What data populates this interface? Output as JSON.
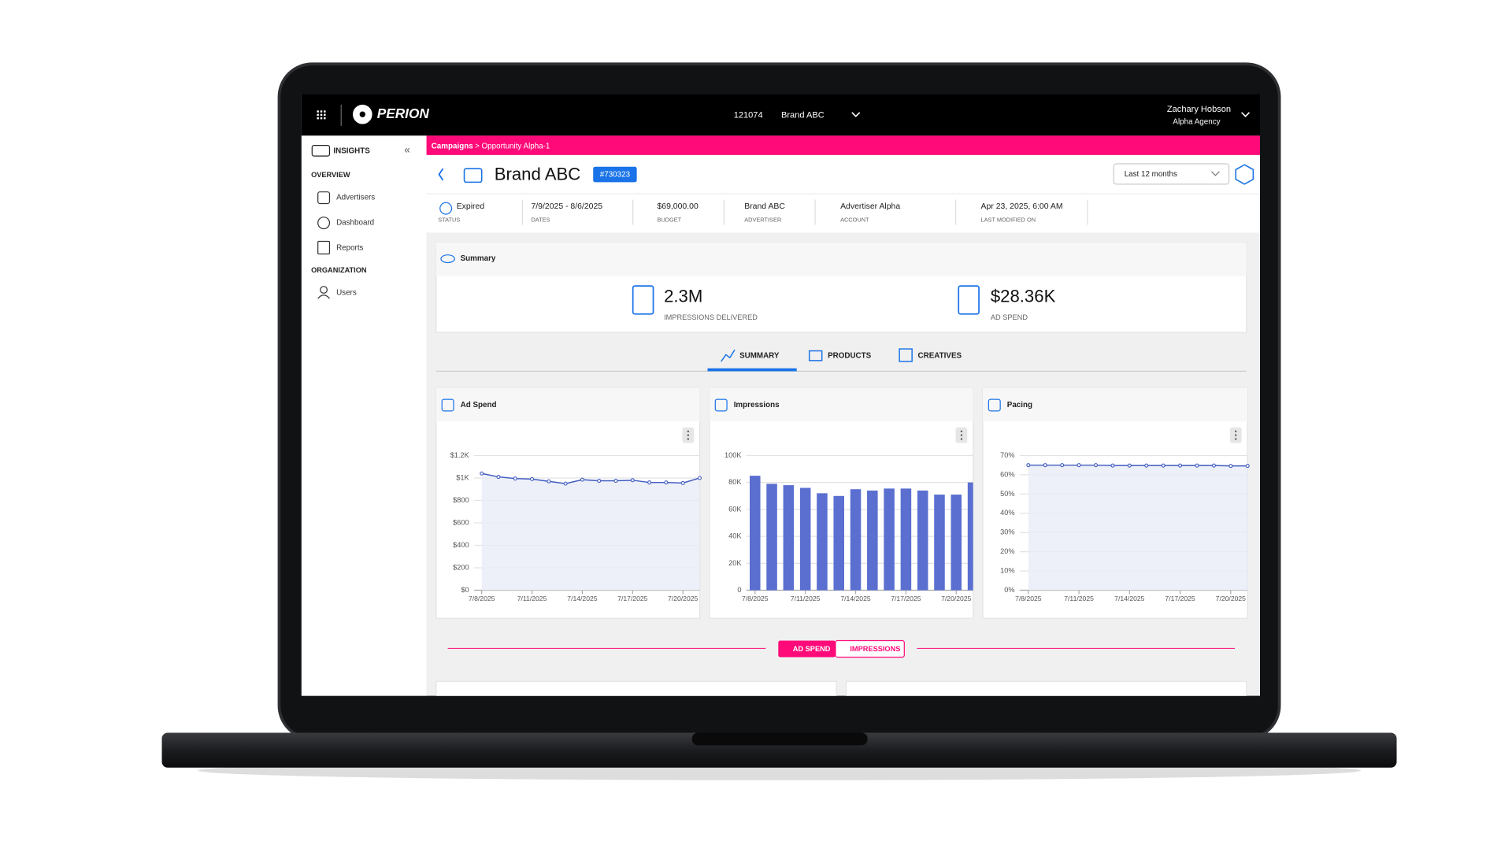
{
  "header": {
    "logo": "PERION",
    "account_id": "121074",
    "brand": "Brand ABC",
    "user_name": "Zachary Hobson",
    "user_org": "Alpha Agency"
  },
  "breadcrumb": {
    "root": "Campaigns",
    "path": "> Opportunity Alpha-1"
  },
  "sidebar": {
    "title": "INSIGHTS",
    "sections": [
      {
        "heading": "OVERVIEW",
        "items": [
          "Advertisers",
          "Dashboard",
          "Reports"
        ]
      },
      {
        "heading": "ORGANIZATION",
        "items": [
          "Users"
        ]
      }
    ]
  },
  "campaign": {
    "name": "Brand ABC",
    "id": "#730323",
    "date_range": "Last 12 months",
    "fields": [
      {
        "value": "Expired",
        "label": "STATUS"
      },
      {
        "value": "7/9/2025 - 8/6/2025",
        "label": "DATES"
      },
      {
        "value": "$69,000.00",
        "label": "BUDGET"
      },
      {
        "value": "Brand ABC",
        "label": "ADVERTISER"
      },
      {
        "value": "Advertiser Alpha",
        "label": "ACCOUNT"
      },
      {
        "value": "Apr 23, 2025, 6:00 AM",
        "label": "LAST MODIFIED ON"
      }
    ]
  },
  "summary": {
    "title": "Summary",
    "stats": [
      {
        "value": "2.3M",
        "label": "IMPRESSIONS DELIVERED"
      },
      {
        "value": "$28.36K",
        "label": "AD SPEND"
      }
    ]
  },
  "tabs": [
    "SUMMARY",
    "PRODUCTS",
    "CREATIVES"
  ],
  "charts": [
    {
      "type": "line",
      "title": "Ad Spend",
      "color": "#3f5bbf",
      "categories": [
        "7/8/2025",
        null,
        null,
        "7/11/2025",
        null,
        null,
        "7/14/2025",
        null,
        null,
        "7/17/2025",
        null,
        null,
        "7/20/2025",
        null
      ],
      "values": [
        1040,
        1010,
        995,
        990,
        970,
        950,
        985,
        975,
        975,
        980,
        960,
        960,
        955,
        1000
      ],
      "ylim": [
        0,
        1200
      ],
      "yticks": [
        {
          "value": 0,
          "label": "$0"
        },
        {
          "value": 200,
          "label": "$200"
        },
        {
          "value": 400,
          "label": "$400"
        },
        {
          "value": 600,
          "label": "$600"
        },
        {
          "value": 800,
          "label": "$800"
        },
        {
          "value": 1000,
          "label": "$1K"
        },
        {
          "value": 1200,
          "label": "$1.2K"
        }
      ],
      "grid": true
    },
    {
      "type": "bar",
      "title": "Impressions",
      "color": "#5a6fd0",
      "categories": [
        "7/8/2025",
        null,
        null,
        "7/11/2025",
        null,
        null,
        "7/14/2025",
        null,
        null,
        "7/17/2025",
        null,
        null,
        "7/20/2025",
        null
      ],
      "values": [
        85000,
        79000,
        78000,
        76000,
        72000,
        70000,
        75000,
        74000,
        75500,
        75500,
        74000,
        71000,
        71000,
        80000
      ],
      "ylim": [
        0,
        100000
      ],
      "yticks": [
        0,
        {
          "value": 20000,
          "label": "20K"
        },
        {
          "value": 40000,
          "label": "40K"
        },
        {
          "value": 60000,
          "label": "60K"
        },
        {
          "value": 80000,
          "label": "80K"
        },
        {
          "value": 100000,
          "label": "100K"
        }
      ],
      "grid": true
    },
    {
      "type": "line",
      "title": "Pacing",
      "color": "#3f5bbf",
      "categories": [
        "7/8/2025",
        null,
        null,
        "7/11/2025",
        null,
        null,
        "7/14/2025",
        null,
        null,
        "7/17/2025",
        null,
        null,
        "7/20/2025",
        null
      ],
      "values": [
        65,
        65,
        65,
        65,
        65,
        64.8,
        64.8,
        64.8,
        64.8,
        64.8,
        64.8,
        64.8,
        64.6,
        64.6
      ],
      "ylim": [
        0,
        70
      ],
      "yticks": [
        {
          "value": 0,
          "label": "0%"
        },
        {
          "value": 10,
          "label": "10%"
        },
        {
          "value": 20,
          "label": "20%"
        },
        {
          "value": 30,
          "label": "30%"
        },
        {
          "value": 40,
          "label": "40%"
        },
        {
          "value": 50,
          "label": "50%"
        },
        {
          "value": 60,
          "label": "60%"
        },
        {
          "value": 70,
          "label": "70%"
        }
      ],
      "grid": true
    }
  ],
  "toggle": [
    "AD SPEND",
    "IMPRESSIONS"
  ]
}
